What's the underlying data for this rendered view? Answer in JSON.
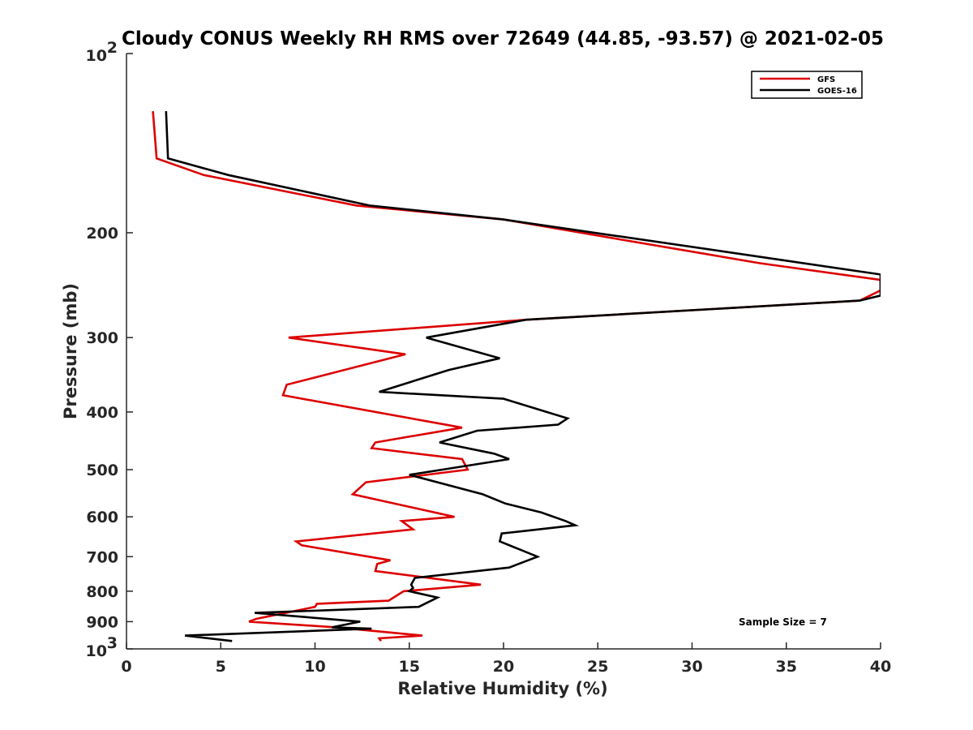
{
  "chart_data": {
    "type": "line",
    "title": "Cloudy CONUS Weekly RH RMS over 72649 (44.85, -93.57) @ 2021-02-05",
    "xlabel": "Relative Humidity (%)",
    "ylabel": "Pressure (mb)",
    "xlim": [
      0,
      40
    ],
    "ylim": [
      100,
      1000
    ],
    "y_scale": "log",
    "y_reversed": true,
    "x_ticks": [
      0,
      5,
      10,
      15,
      20,
      25,
      30,
      35,
      40
    ],
    "x_tick_labels": [
      "0",
      "5",
      "10",
      "15",
      "20",
      "25",
      "30",
      "35",
      "40"
    ],
    "y_ticks": [
      200,
      300,
      400,
      500,
      600,
      700,
      800,
      900
    ],
    "y_tick_labels": [
      "200",
      "300",
      "400",
      "500",
      "600",
      "700",
      "800",
      "900"
    ],
    "y_limit_labels": [
      {
        "value": 100,
        "base": "10",
        "exp": "2"
      },
      {
        "value": 1000,
        "base": "10",
        "exp": "3"
      }
    ],
    "grid": false,
    "legend": "top-right",
    "annotation": "Sample Size = 7",
    "series": [
      {
        "name": "GFS",
        "color": "#dd0000",
        "points": [
          [
            1.4,
            125
          ],
          [
            1.6,
            150
          ],
          [
            4.1,
            160
          ],
          [
            12.2,
            180
          ],
          [
            20,
            190
          ],
          [
            33.6,
            225
          ],
          [
            40,
            240
          ],
          [
            40,
            250
          ],
          [
            38.9,
            260
          ],
          [
            21.2,
            280
          ],
          [
            8.6,
            300
          ],
          [
            14.8,
            320
          ],
          [
            8.5,
            360
          ],
          [
            8.3,
            375
          ],
          [
            17.8,
            425
          ],
          [
            13.2,
            450
          ],
          [
            13,
            460
          ],
          [
            17.8,
            480
          ],
          [
            18.1,
            500
          ],
          [
            12.7,
            525
          ],
          [
            12,
            550
          ],
          [
            17.4,
            600
          ],
          [
            14.6,
            610
          ],
          [
            15.2,
            630
          ],
          [
            9,
            660
          ],
          [
            9.3,
            670
          ],
          [
            14,
            710
          ],
          [
            13.3,
            720
          ],
          [
            13.2,
            740
          ],
          [
            18.8,
            780
          ],
          [
            14.7,
            800
          ],
          [
            13.9,
            830
          ],
          [
            10.1,
            840
          ],
          [
            10,
            850
          ],
          [
            6.9,
            890
          ],
          [
            6.5,
            900
          ],
          [
            11.1,
            920
          ],
          [
            15.7,
            950
          ],
          [
            13.4,
            960
          ],
          [
            13.5,
            970
          ]
        ]
      },
      {
        "name": "GOES-16",
        "color": "#000000",
        "points": [
          [
            2.1,
            125
          ],
          [
            2.2,
            150
          ],
          [
            5.4,
            160
          ],
          [
            12.9,
            180
          ],
          [
            20,
            190
          ],
          [
            33.8,
            220
          ],
          [
            40,
            235
          ],
          [
            40,
            255
          ],
          [
            38.9,
            260
          ],
          [
            21.2,
            280
          ],
          [
            15.9,
            300
          ],
          [
            19.8,
            325
          ],
          [
            17.1,
            340
          ],
          [
            13.4,
            370
          ],
          [
            20,
            380
          ],
          [
            23.4,
            410
          ],
          [
            22.9,
            420
          ],
          [
            18.6,
            430
          ],
          [
            16.6,
            450
          ],
          [
            19.5,
            470
          ],
          [
            20.3,
            480
          ],
          [
            15,
            510
          ],
          [
            18.9,
            550
          ],
          [
            20.1,
            570
          ],
          [
            22,
            590
          ],
          [
            23.3,
            610
          ],
          [
            23.8,
            620
          ],
          [
            19.9,
            640
          ],
          [
            19.8,
            660
          ],
          [
            21.8,
            700
          ],
          [
            20.3,
            730
          ],
          [
            15.3,
            760
          ],
          [
            15.1,
            780
          ],
          [
            15.2,
            790
          ],
          [
            15,
            800
          ],
          [
            16.5,
            820
          ],
          [
            15.5,
            850
          ],
          [
            6.8,
            870
          ],
          [
            12.4,
            900
          ],
          [
            10.9,
            920
          ],
          [
            13,
            925
          ],
          [
            3.1,
            950
          ],
          [
            5.6,
            970
          ]
        ]
      }
    ]
  }
}
